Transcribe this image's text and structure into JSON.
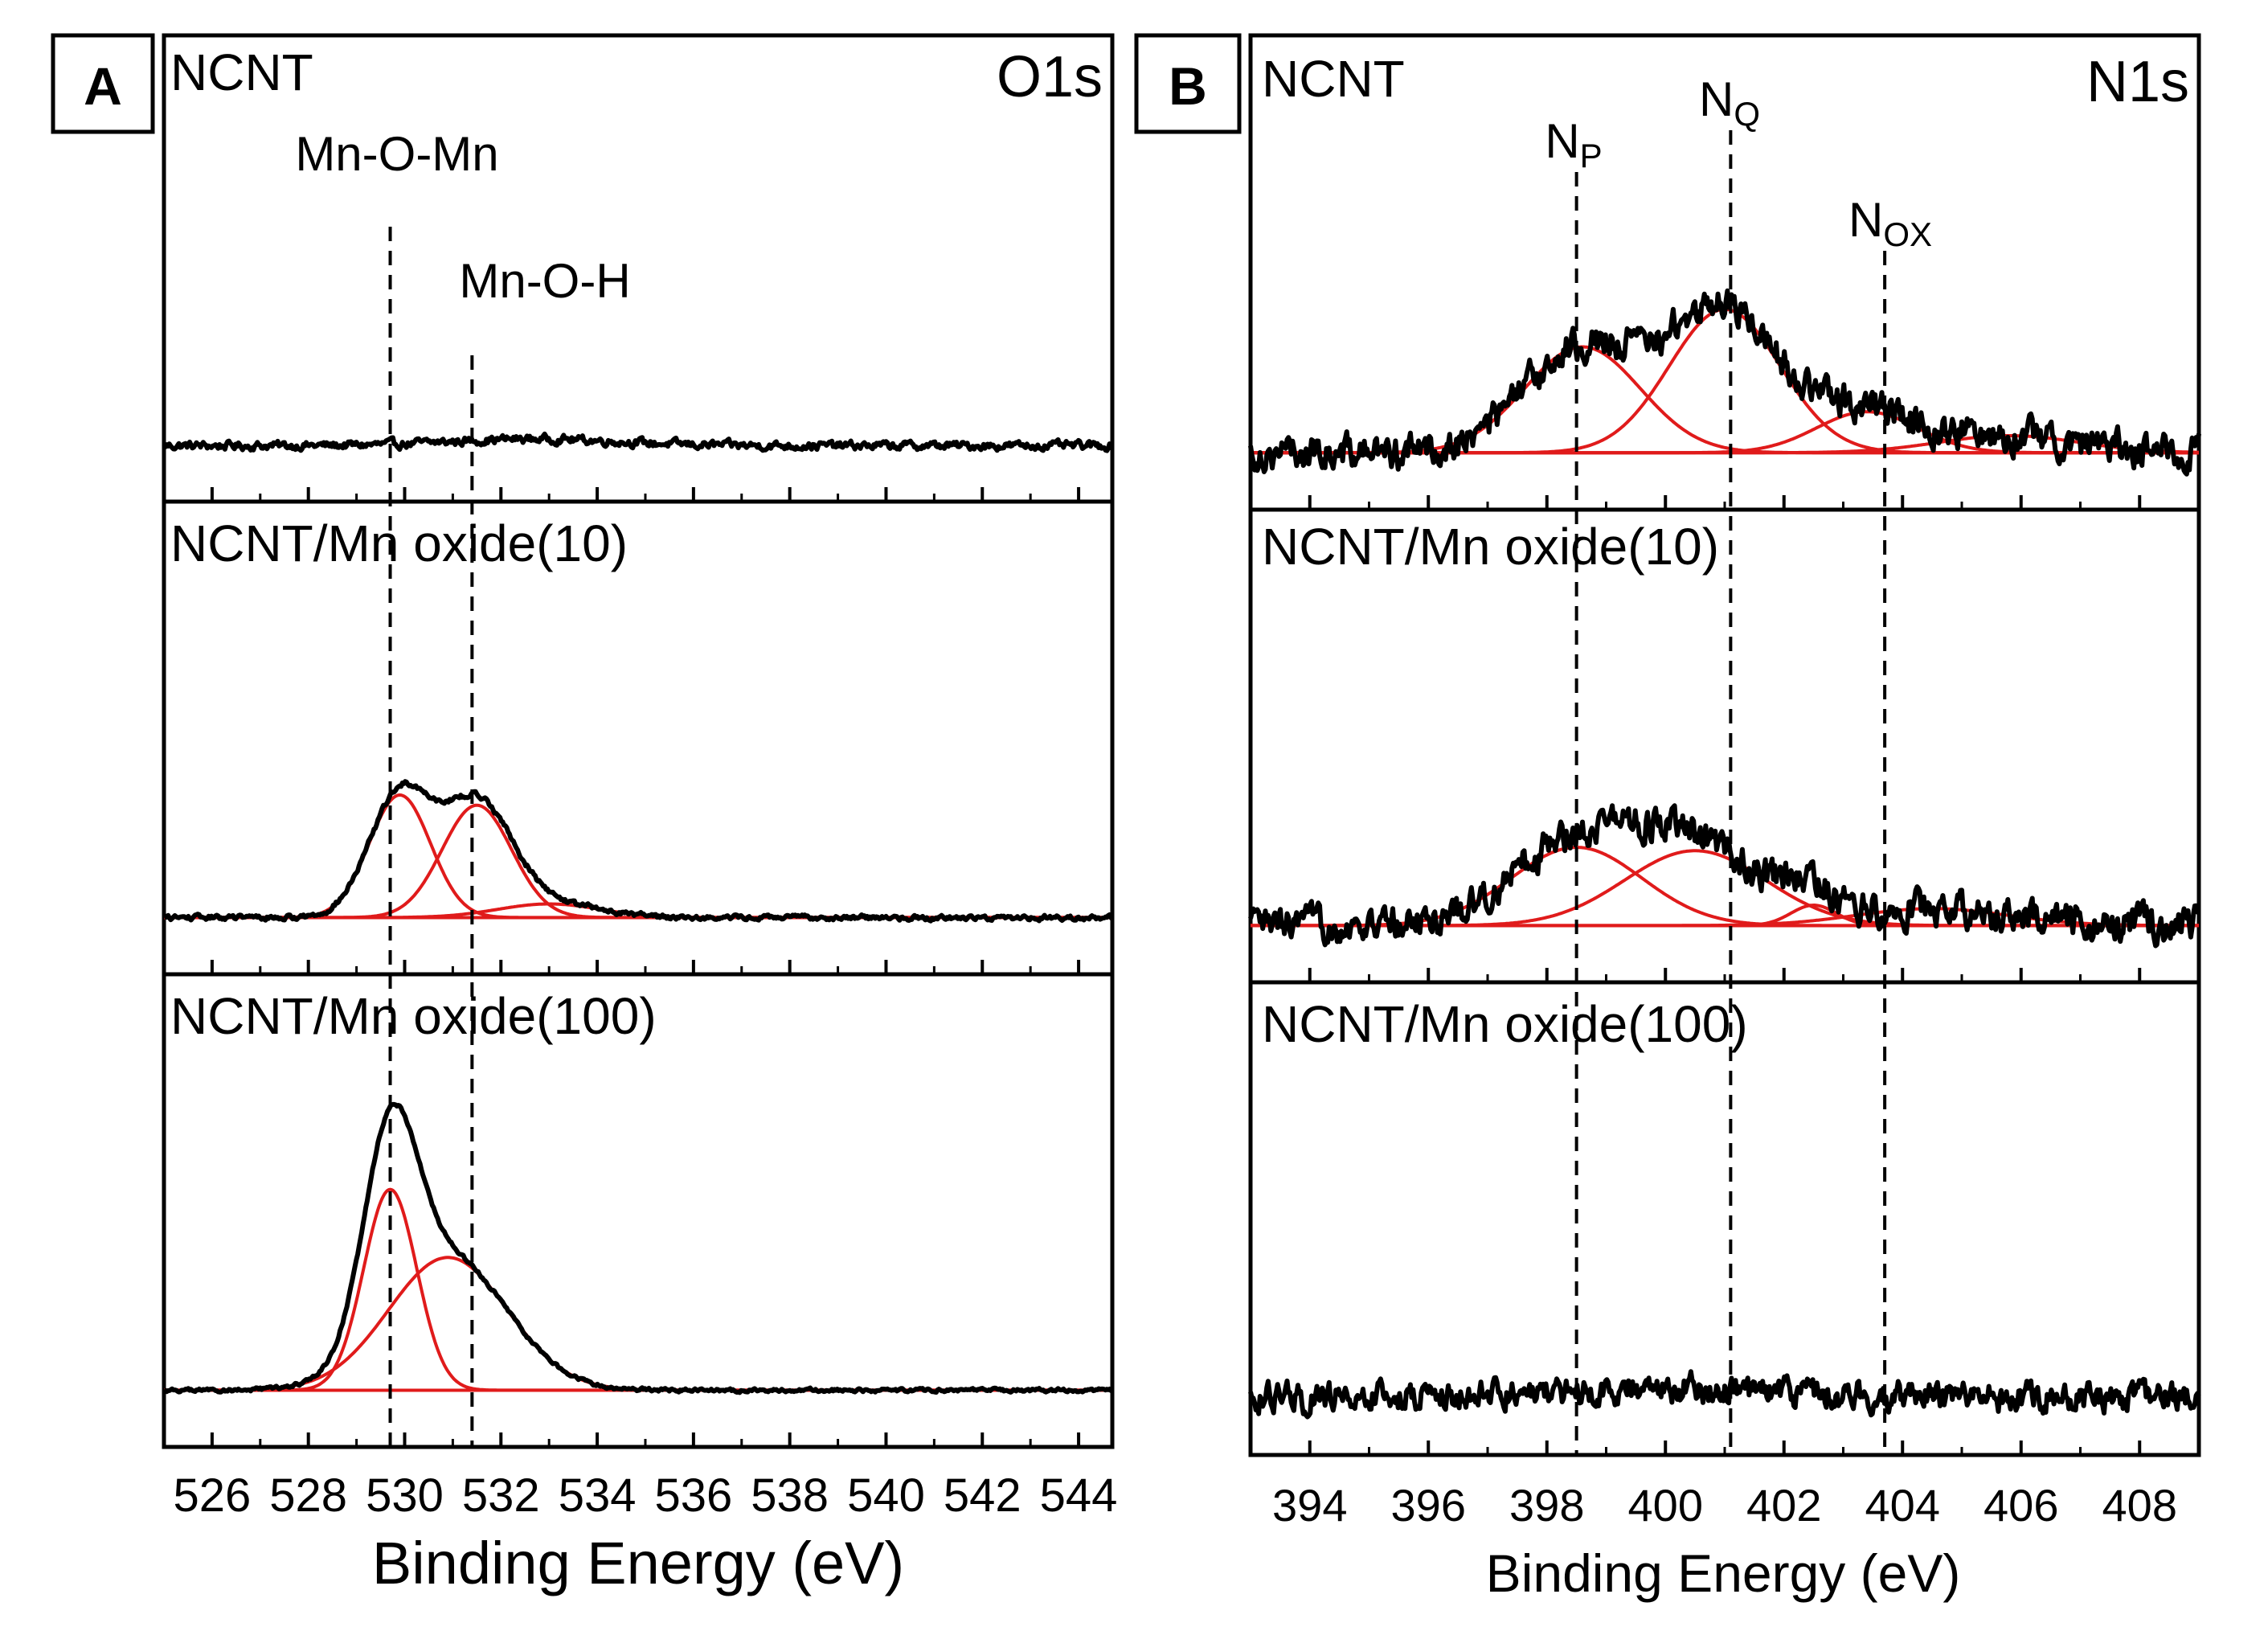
{
  "chart_data": [
    {
      "type": "line",
      "panel_label": "A",
      "corner_label": "O1s",
      "xlabel": "Binding Energy (eV)",
      "xlim": [
        525,
        544.7
      ],
      "xticks": [
        526,
        528,
        530,
        532,
        534,
        536,
        538,
        540,
        542,
        544
      ],
      "xtick_labels": [
        "526",
        "528",
        "530",
        "532",
        "534",
        "536",
        "538",
        "540",
        "542",
        "544"
      ],
      "ylabel": "",
      "yticks": false,
      "reference_lines": [
        {
          "name": "Mn-O-Mn",
          "label": "Mn-O-Mn",
          "x": 529.7
        },
        {
          "name": "Mn-O-H",
          "label": "Mn-O-H",
          "x": 531.4
        }
      ],
      "subplots": [
        {
          "label": "NCNT",
          "baseline": 0.0,
          "noise": 0.01,
          "ylim": [
            -0.06,
            1.0
          ],
          "peaks": [
            {
              "center": 532.7,
              "amplitude": 0.02,
              "fwhm": 4.0,
              "fit": false
            }
          ]
        },
        {
          "label": "NCNT/Mn oxide(10)",
          "baseline": 0.0,
          "noise": 0.006,
          "ylim": [
            -0.06,
            1.0
          ],
          "peaks": [
            {
              "center": 529.9,
              "amplitude": 0.36,
              "fwhm": 1.5,
              "fit": true
            },
            {
              "center": 531.5,
              "amplitude": 0.33,
              "fwhm": 1.7,
              "fit": true
            },
            {
              "center": 533.0,
              "amplitude": 0.04,
              "fwhm": 2.5,
              "fit": true
            }
          ]
        },
        {
          "label": "NCNT/Mn oxide(100)",
          "baseline": 0.0,
          "noise": 0.004,
          "ylim": [
            -0.06,
            1.0
          ],
          "peaks": [
            {
              "center": 529.7,
              "amplitude": 0.59,
              "fwhm": 1.3,
              "fit": true
            },
            {
              "center": 530.9,
              "amplitude": 0.39,
              "fwhm": 2.9,
              "fit": true
            }
          ]
        }
      ]
    },
    {
      "type": "line",
      "panel_label": "B",
      "corner_label": "N1s",
      "xlabel": "Binding Energy (eV)",
      "xlim": [
        393,
        409
      ],
      "xticks": [
        394,
        396,
        398,
        400,
        402,
        404,
        406,
        408
      ],
      "xtick_labels": [
        "394",
        "396",
        "398",
        "400",
        "402",
        "404",
        "406",
        "408"
      ],
      "ylabel": "",
      "yticks": false,
      "reference_lines": [
        {
          "name": "NP",
          "label_main": "N",
          "label_sub": "P",
          "x": 398.5
        },
        {
          "name": "NQ",
          "label_main": "N",
          "label_sub": "Q",
          "x": 401.1
        },
        {
          "name": "NOX",
          "label_main": "N",
          "label_sub": "OX",
          "x": 403.7
        }
      ],
      "subplots": [
        {
          "label": "NCNT",
          "baseline": 0.0,
          "noise": 0.04,
          "ylim": [
            -0.12,
            1.0
          ],
          "peaks": [
            {
              "center": 398.6,
              "amplitude": 0.31,
              "fwhm": 2.3,
              "fit": true
            },
            {
              "center": 401.0,
              "amplitude": 0.42,
              "fwhm": 2.2,
              "fit": true
            },
            {
              "center": 403.4,
              "amplitude": 0.12,
              "fwhm": 2.0,
              "fit": true
            },
            {
              "center": 405.8,
              "amplitude": 0.05,
              "fwhm": 2.8,
              "fit": true
            }
          ]
        },
        {
          "label": "NCNT/Mn oxide(10)",
          "baseline": 0.0,
          "noise": 0.04,
          "ylim": [
            -0.12,
            1.0
          ],
          "peaks": [
            {
              "center": 398.5,
              "amplitude": 0.23,
              "fwhm": 2.6,
              "fit": true
            },
            {
              "center": 400.5,
              "amplitude": 0.22,
              "fwhm": 2.8,
              "fit": true
            },
            {
              "center": 402.5,
              "amplitude": 0.06,
              "fwhm": 0.9,
              "fit": true
            },
            {
              "center": 404.5,
              "amplitude": 0.05,
              "fwhm": 3.0,
              "fit": true
            }
          ]
        },
        {
          "label": "NCNT/Mn oxide(100)",
          "baseline": 0.0,
          "noise": 0.035,
          "ylim": [
            -0.12,
            1.0
          ],
          "peaks": [
            {
              "center": 400.0,
              "amplitude": 0.03,
              "fwhm": 5.0,
              "fit": false
            }
          ]
        }
      ]
    }
  ]
}
